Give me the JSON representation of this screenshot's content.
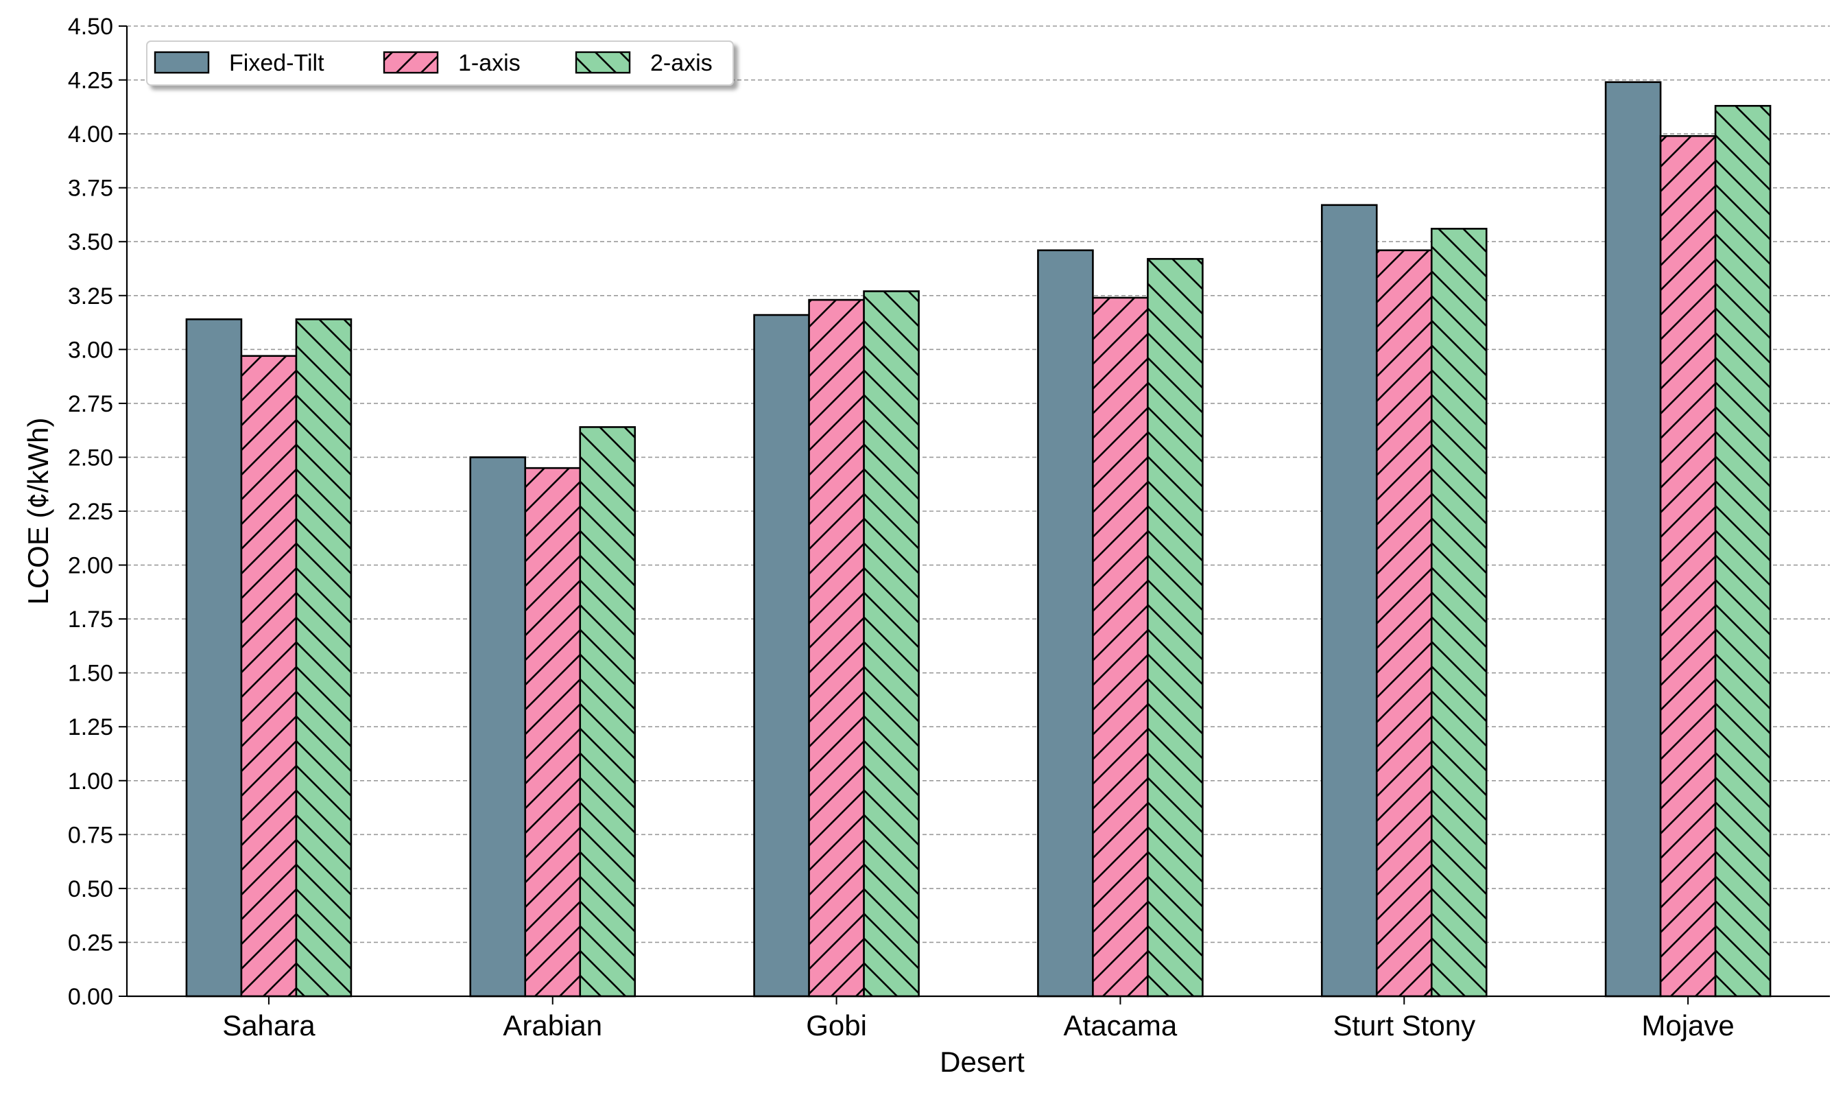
{
  "chart_data": {
    "type": "bar",
    "title": "",
    "xlabel": "Desert",
    "ylabel": "LCOE (¢/kWh)",
    "ylim": [
      0,
      4.5
    ],
    "yticks": [
      "0.00",
      "0.25",
      "0.50",
      "0.75",
      "1.00",
      "1.25",
      "1.50",
      "1.75",
      "2.00",
      "2.25",
      "2.50",
      "2.75",
      "3.00",
      "3.25",
      "3.50",
      "3.75",
      "4.00",
      "4.25",
      "4.50"
    ],
    "grid": "y-dashed",
    "legend_position": "top-left",
    "categories": [
      "Sahara",
      "Arabian",
      "Gobi",
      "Atacama",
      "Sturt Stony",
      "Mojave"
    ],
    "series": [
      {
        "name": "Fixed-Tilt",
        "color": "#6b8c9c",
        "hatch": "none",
        "values": [
          3.14,
          2.5,
          3.16,
          3.46,
          3.67,
          4.24
        ]
      },
      {
        "name": "1-axis",
        "color": "#f78fb3",
        "hatch": "forward-slash",
        "values": [
          2.97,
          2.45,
          3.23,
          3.24,
          3.46,
          3.99
        ]
      },
      {
        "name": "2-axis",
        "color": "#8fd4a5",
        "hatch": "back-slash",
        "values": [
          3.14,
          2.64,
          3.27,
          3.42,
          3.56,
          4.13
        ]
      }
    ]
  }
}
